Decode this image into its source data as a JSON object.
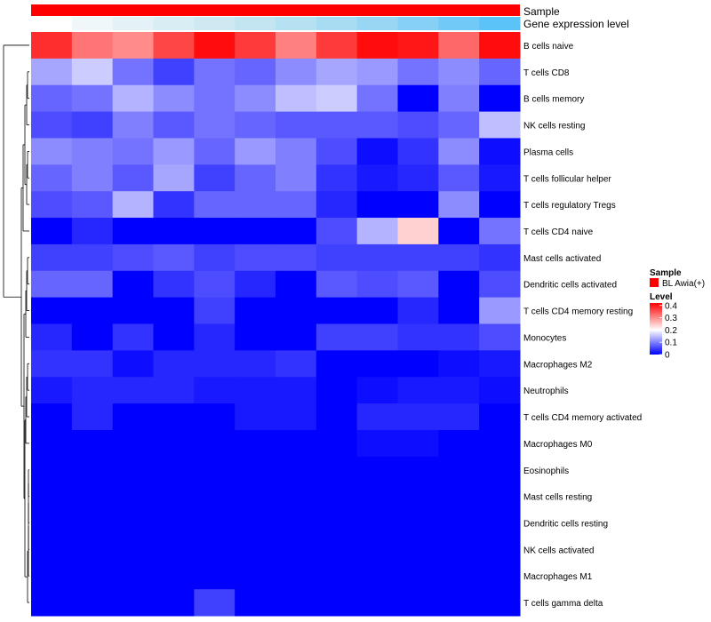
{
  "chart_data": {
    "type": "heatmap",
    "title": "",
    "annotation_tracks": [
      "Sample",
      "Gene expression level"
    ],
    "sample_track_color": "#ff0000",
    "expression_track_colors": [
      "#ffffff",
      "#f0f7fb",
      "#e4f2f8",
      "#d9edf5",
      "#cfe9f3",
      "#c3e5f2",
      "#b6e1f2",
      "#a8dcf3",
      "#98d6f4",
      "#86d0f6",
      "#71c9f7",
      "#5cc3f8"
    ],
    "columns": 12,
    "rows": [
      "B cells naive",
      "T cells CD8",
      "B cells memory",
      "NK cells resting",
      "Plasma cells",
      "T cells follicular helper",
      "T cells regulatory  Tregs",
      "T cells CD4 naive",
      "Mast cells activated",
      "Dendritic cells activated",
      "T cells CD4 memory resting",
      "Monocytes",
      "Macrophages M2",
      "Neutrophils",
      "T cells CD4 memory activated",
      "Macrophages M0",
      "Eosinophils",
      "Mast cells resting",
      "Dendritic cells resting",
      "NK cells activated",
      "Macrophages M1",
      "T cells gamma delta"
    ],
    "values": [
      [
        0.38,
        0.32,
        0.3,
        0.36,
        0.41,
        0.37,
        0.31,
        0.37,
        0.41,
        0.4,
        0.33,
        0.41
      ],
      [
        0.13,
        0.16,
        0.09,
        0.05,
        0.09,
        0.08,
        0.11,
        0.13,
        0.12,
        0.09,
        0.11,
        0.08
      ],
      [
        0.08,
        0.09,
        0.14,
        0.11,
        0.09,
        0.11,
        0.15,
        0.16,
        0.09,
        0.0,
        0.1,
        0.0
      ],
      [
        0.06,
        0.05,
        0.1,
        0.07,
        0.09,
        0.08,
        0.07,
        0.07,
        0.07,
        0.06,
        0.08,
        0.15
      ],
      [
        0.11,
        0.1,
        0.09,
        0.12,
        0.08,
        0.12,
        0.1,
        0.06,
        0.01,
        0.04,
        0.11,
        0.01
      ],
      [
        0.08,
        0.1,
        0.07,
        0.13,
        0.05,
        0.08,
        0.1,
        0.04,
        0.02,
        0.03,
        0.07,
        0.02
      ],
      [
        0.06,
        0.07,
        0.14,
        0.04,
        0.08,
        0.08,
        0.08,
        0.03,
        0.0,
        0.0,
        0.11,
        0.0
      ],
      [
        0.0,
        0.03,
        0.0,
        0.0,
        0.0,
        0.0,
        0.0,
        0.06,
        0.14,
        0.24,
        0.0,
        0.09
      ],
      [
        0.05,
        0.05,
        0.06,
        0.07,
        0.05,
        0.06,
        0.06,
        0.05,
        0.05,
        0.05,
        0.05,
        0.04
      ],
      [
        0.08,
        0.08,
        0.0,
        0.04,
        0.06,
        0.03,
        0.0,
        0.07,
        0.06,
        0.07,
        0.0,
        0.06
      ],
      [
        0.0,
        0.0,
        0.0,
        0.0,
        0.05,
        0.0,
        0.0,
        0.0,
        0.0,
        0.03,
        0.0,
        0.12
      ],
      [
        0.03,
        0.0,
        0.04,
        0.0,
        0.03,
        0.0,
        0.0,
        0.05,
        0.05,
        0.04,
        0.04,
        0.06
      ],
      [
        0.04,
        0.04,
        0.01,
        0.03,
        0.03,
        0.03,
        0.04,
        0.0,
        0.0,
        0.0,
        0.01,
        0.02
      ],
      [
        0.02,
        0.03,
        0.03,
        0.03,
        0.02,
        0.02,
        0.02,
        0.0,
        0.01,
        0.02,
        0.02,
        0.01
      ],
      [
        0.0,
        0.03,
        0.0,
        0.0,
        0.0,
        0.02,
        0.02,
        0.0,
        0.03,
        0.03,
        0.03,
        0.0
      ],
      [
        0.0,
        0.0,
        0.0,
        0.0,
        0.0,
        0.0,
        0.0,
        0.0,
        0.01,
        0.01,
        0.0,
        0.0
      ],
      [
        0.0,
        0.0,
        0.0,
        0.0,
        0.0,
        0.0,
        0.0,
        0.0,
        0.0,
        0.0,
        0.0,
        0.0
      ],
      [
        0.0,
        0.0,
        0.0,
        0.0,
        0.0,
        0.0,
        0.0,
        0.0,
        0.0,
        0.0,
        0.0,
        0.0
      ],
      [
        0.0,
        0.0,
        0.0,
        0.0,
        0.0,
        0.0,
        0.0,
        0.0,
        0.0,
        0.0,
        0.0,
        0.0
      ],
      [
        0.0,
        0.0,
        0.0,
        0.0,
        0.0,
        0.0,
        0.0,
        0.0,
        0.0,
        0.0,
        0.0,
        0.0
      ],
      [
        0.0,
        0.0,
        0.0,
        0.0,
        0.0,
        0.0,
        0.0,
        0.0,
        0.0,
        0.0,
        0.0,
        0.0
      ],
      [
        0.0,
        0.0,
        0.0,
        0.0,
        0.05,
        0.0,
        0.0,
        0.0,
        0.0,
        0.0,
        0.0,
        0.0
      ]
    ],
    "color_scale": {
      "low": "#0000ff",
      "mid": "#ffffff",
      "high": "#ff0000",
      "min": 0,
      "mid_value": 0.2,
      "max": 0.42
    },
    "legend": {
      "sample_title": "Sample",
      "sample_label": "BL Awia(+)",
      "level_title": "Level",
      "ticks": [
        "0.4",
        "0.3",
        "0.2",
        "0.1",
        "0"
      ],
      "tick_values": [
        0.4,
        0.3,
        0.2,
        0.1,
        0
      ],
      "placement": "right"
    },
    "dendrogram": "rows"
  }
}
